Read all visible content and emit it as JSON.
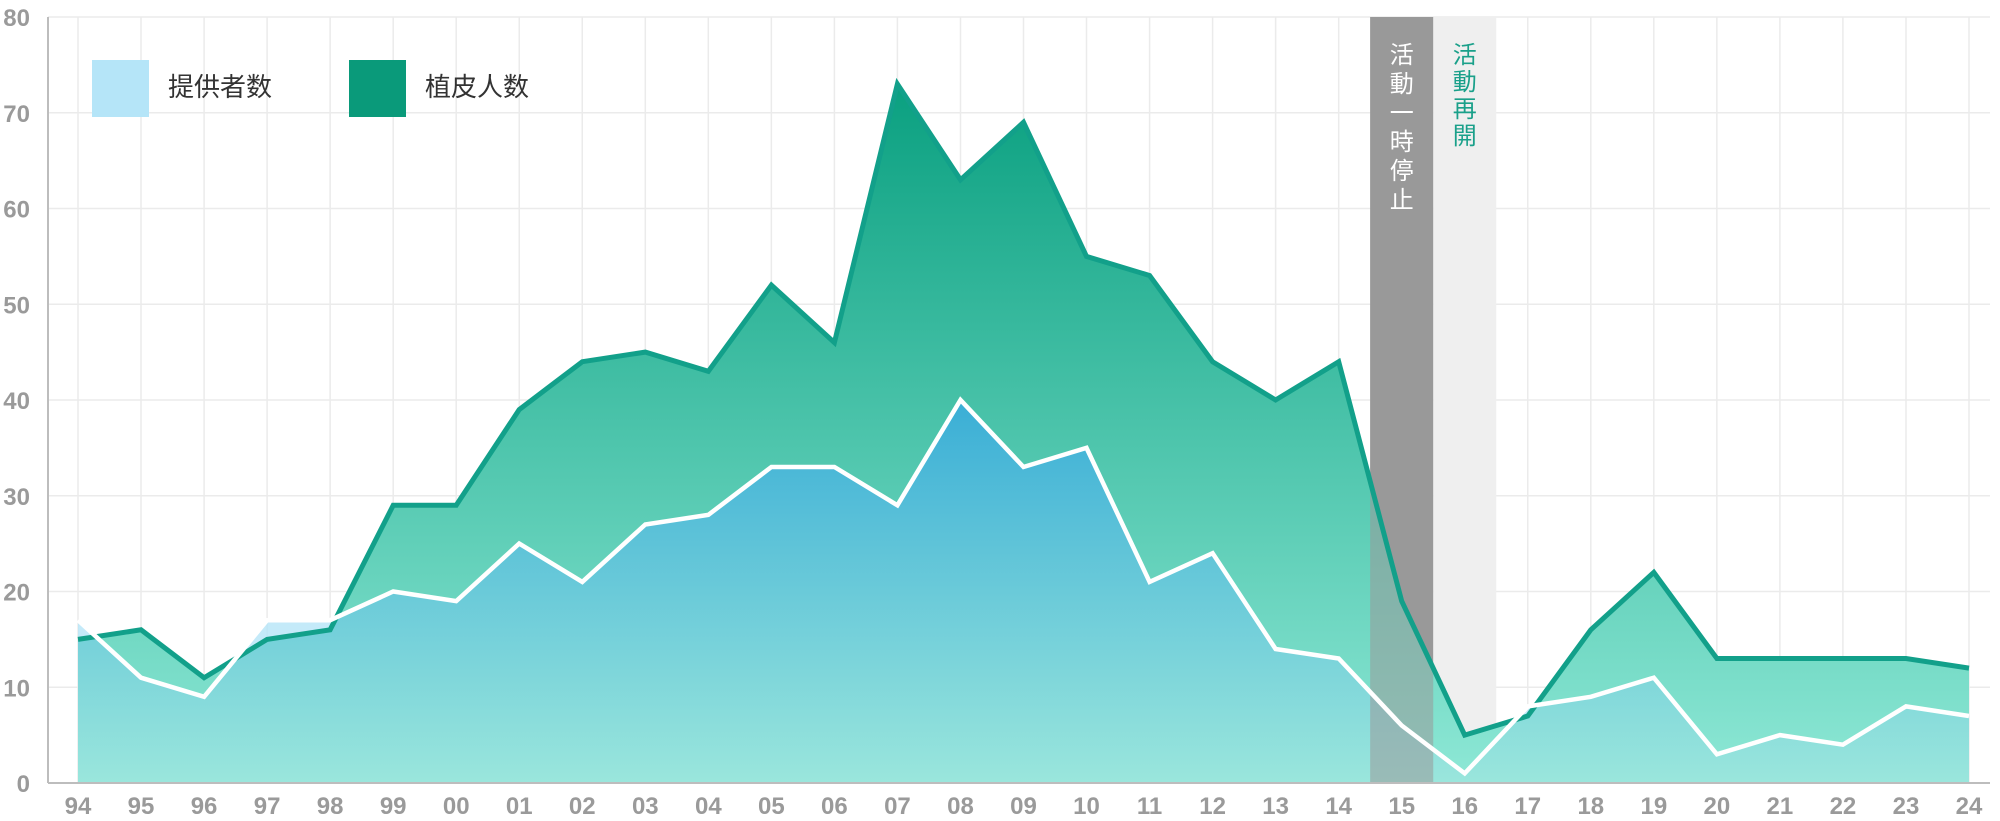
{
  "chart_data": {
    "type": "area",
    "categories": [
      "94",
      "95",
      "96",
      "97",
      "98",
      "99",
      "00",
      "01",
      "02",
      "03",
      "04",
      "05",
      "06",
      "07",
      "08",
      "09",
      "10",
      "11",
      "12",
      "13",
      "14",
      "15",
      "16",
      "17",
      "18",
      "19",
      "20",
      "21",
      "22",
      "23",
      "24"
    ],
    "series": [
      {
        "name": "提供者数",
        "values": [
          17,
          11,
          9,
          17,
          17,
          20,
          19,
          25,
          21,
          27,
          28,
          33,
          33,
          29,
          40,
          33,
          35,
          21,
          24,
          14,
          13,
          6,
          1,
          8,
          9,
          11,
          3,
          5,
          4,
          8,
          7
        ]
      },
      {
        "name": "植皮人数",
        "values": [
          15,
          16,
          11,
          15,
          16,
          29,
          29,
          39,
          44,
          45,
          43,
          52,
          46,
          73,
          63,
          69,
          55,
          53,
          44,
          40,
          44,
          19,
          5,
          7,
          16,
          22,
          13,
          13,
          13,
          13,
          12
        ]
      }
    ],
    "ylim": [
      0,
      80
    ],
    "yticks": [
      "0",
      "10",
      "20",
      "30",
      "40",
      "50",
      "60",
      "70",
      "80"
    ],
    "grid": true,
    "legend": "top-left",
    "annotations": [
      {
        "text": "活動一時停止",
        "category": "15",
        "color": "#999999",
        "text_color": "#ffffff"
      },
      {
        "text": "活動再開",
        "category": "16",
        "color": "#efefef",
        "text_color": "#1aa08a"
      }
    ],
    "colors": {
      "providers_fill_top": "#3aaed6",
      "providers_fill_bottom": "#9ae6dc",
      "providers_line": "#ffffff",
      "providers_legend": "#b5e5f8",
      "grafts_fill_top": "#0aa080",
      "grafts_fill_bottom": "#8ee8d6",
      "grafts_line": "#12a08a",
      "grafts_legend": "#0a9a7a",
      "grid": "#ebebeb",
      "axis": "#bdbdbd"
    }
  }
}
